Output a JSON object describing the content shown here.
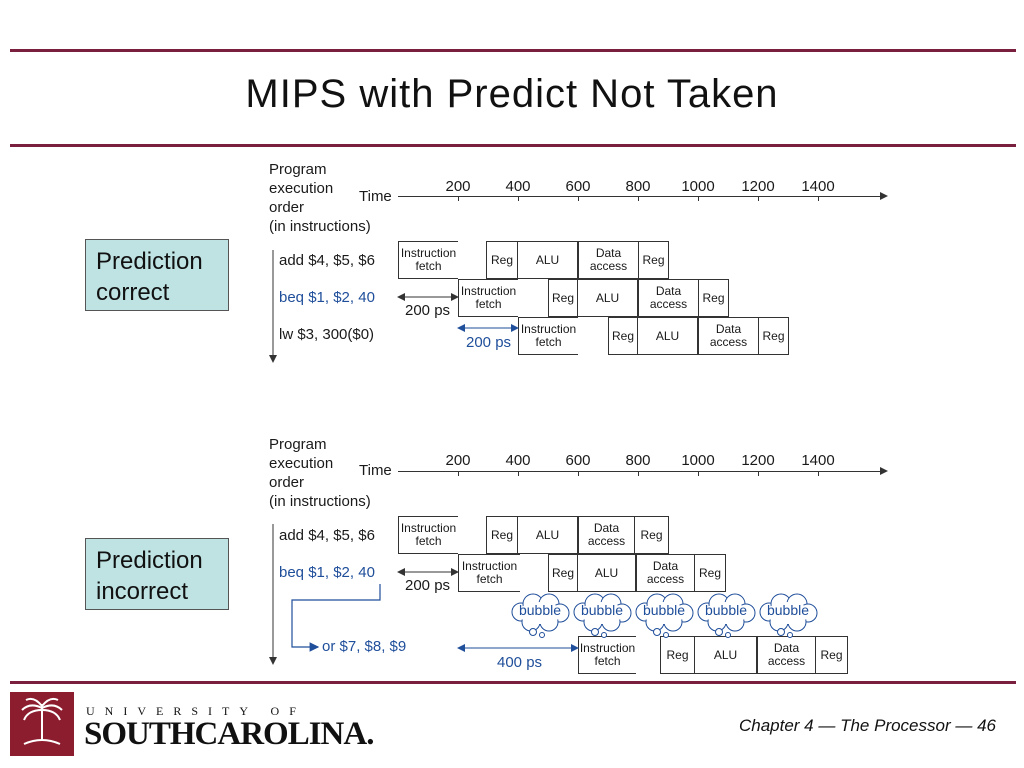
{
  "title": "MIPS with Predict Not Taken",
  "footer": "Chapter 4 — The Processor — 46",
  "logo": {
    "line1": "UNIVERSITY OF",
    "line2": "SOUTHCAROLINA."
  },
  "diagrams": [
    {
      "callout": "Prediction correct",
      "header": [
        "Program",
        "execution",
        "order",
        "(in instructions)"
      ],
      "time_label": "Time",
      "ticks": [
        "200",
        "400",
        "600",
        "800",
        "1000",
        "1200",
        "1400"
      ],
      "instructions": [
        "add $4, $5, $6",
        "beq $1, $2, 40",
        "lw  $3, 300($0)"
      ],
      "stages": [
        "Instruction fetch",
        "Reg",
        "ALU",
        "Data access",
        "Reg"
      ],
      "delays": [
        "200 ps",
        "200 ps"
      ]
    },
    {
      "callout": "Prediction incorrect",
      "header": [
        "Program",
        "execution",
        "order",
        "(in instructions)"
      ],
      "time_label": "Time",
      "ticks": [
        "200",
        "400",
        "600",
        "800",
        "1000",
        "1200",
        "1400"
      ],
      "instructions": [
        "add $4, $5, $6",
        "beq $1, $2, 40",
        "or $7, $8, $9"
      ],
      "stages": [
        "Instruction fetch",
        "Reg",
        "ALU",
        "Data access",
        "Reg"
      ],
      "delays": [
        "200 ps",
        "400 ps"
      ],
      "bubbles": [
        "bubble",
        "bubble",
        "bubble",
        "bubble",
        "bubble"
      ]
    }
  ]
}
